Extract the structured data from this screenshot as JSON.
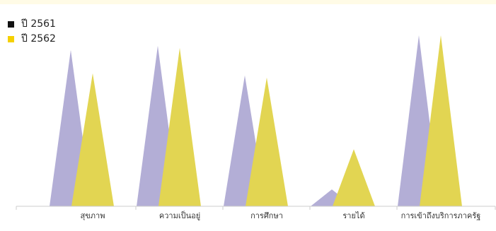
{
  "chart_data": {
    "type": "area",
    "title": "",
    "xlabel": "",
    "ylabel": "",
    "categories": [
      "สุขภาพ",
      "ความเป็นอยู่",
      "การศึกษา",
      "รายได้",
      "การเข้าถึงบริการภาครัฐ"
    ],
    "series": [
      {
        "name": "ปี 2561",
        "legend_color": "#111111",
        "fill_color": "#b3aed6",
        "values": [
          74,
          76,
          62,
          8,
          81
        ]
      },
      {
        "name": "ปี 2562",
        "legend_color": "#f5d000",
        "fill_color": "#e2d552",
        "values": [
          63,
          75,
          61,
          27,
          81
        ]
      }
    ],
    "ylim": [
      0,
      90
    ],
    "grid": false,
    "legend_position": "top-left"
  }
}
